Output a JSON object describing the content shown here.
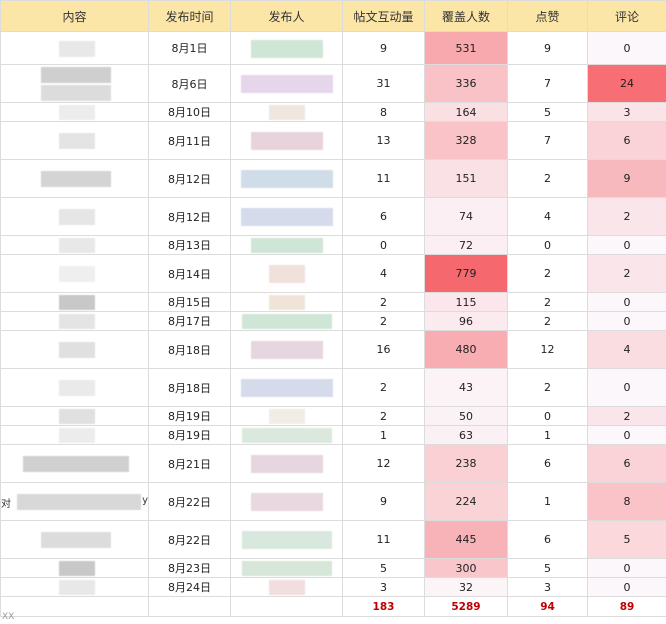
{
  "headers": [
    "内容",
    "发布时间",
    "发布人",
    "帖文互动量",
    "覆盖人数",
    "点赞",
    "评论"
  ],
  "rows": [
    {
      "date": "8月1日",
      "interactions": "9",
      "reach": "531",
      "likes": "9",
      "comments": "0",
      "reach_bg": "#f7a9ae",
      "comments_bg": "#fbf7fa"
    },
    {
      "date": "8月6日",
      "interactions": "31",
      "reach": "336",
      "likes": "7",
      "comments": "24",
      "reach_bg": "#f9c2c6",
      "comments_bg": "#f76f74"
    },
    {
      "date": "8月10日",
      "interactions": "8",
      "reach": "164",
      "likes": "5",
      "comments": "3",
      "reach_bg": "#fadfe3",
      "comments_bg": "#fbe4e8"
    },
    {
      "date": "8月11日",
      "interactions": "13",
      "reach": "328",
      "likes": "7",
      "comments": "6",
      "reach_bg": "#f9c3c7",
      "comments_bg": "#f9d3d7"
    },
    {
      "date": "8月12日",
      "interactions": "11",
      "reach": "151",
      "likes": "2",
      "comments": "9",
      "reach_bg": "#fae1e5",
      "comments_bg": "#f8b9be"
    },
    {
      "date": "8月12日",
      "interactions": "6",
      "reach": "74",
      "likes": "4",
      "comments": "2",
      "reach_bg": "#fbeff3",
      "comments_bg": "#fae6ea"
    },
    {
      "date": "8月13日",
      "interactions": "0",
      "reach": "72",
      "likes": "0",
      "comments": "0",
      "reach_bg": "#fbeff3",
      "comments_bg": "#fbf7fa"
    },
    {
      "date": "8月14日",
      "interactions": "4",
      "reach": "779",
      "likes": "2",
      "comments": "2",
      "reach_bg": "#f5686d",
      "comments_bg": "#fae6ea"
    },
    {
      "date": "8月15日",
      "interactions": "2",
      "reach": "115",
      "likes": "2",
      "comments": "0",
      "reach_bg": "#fbe7eb",
      "comments_bg": "#fbf7fa"
    },
    {
      "date": "8月17日",
      "interactions": "2",
      "reach": "96",
      "likes": "2",
      "comments": "0",
      "reach_bg": "#fbeaee",
      "comments_bg": "#fbf7fa"
    },
    {
      "date": "8月18日",
      "interactions": "16",
      "reach": "480",
      "likes": "12",
      "comments": "4",
      "reach_bg": "#f8adb2",
      "comments_bg": "#fadde1"
    },
    {
      "date": "8月18日",
      "interactions": "2",
      "reach": "43",
      "likes": "2",
      "comments": "0",
      "reach_bg": "#fbf3f6",
      "comments_bg": "#fbf7fa"
    },
    {
      "date": "8月19日",
      "interactions": "2",
      "reach": "50",
      "likes": "0",
      "comments": "2",
      "reach_bg": "#fbf2f5",
      "comments_bg": "#fae6ea"
    },
    {
      "date": "8月19日",
      "interactions": "1",
      "reach": "63",
      "likes": "1",
      "comments": "0",
      "reach_bg": "#fbf0f4",
      "comments_bg": "#fbf7fa"
    },
    {
      "date": "8月21日",
      "interactions": "12",
      "reach": "238",
      "likes": "6",
      "comments": "6",
      "reach_bg": "#fad0d4",
      "comments_bg": "#f9d3d7"
    },
    {
      "date": "8月22日",
      "interactions": "9",
      "reach": "224",
      "likes": "1",
      "comments": "8",
      "reach_bg": "#fad3d7",
      "comments_bg": "#f9c3c8"
    },
    {
      "date": "8月22日",
      "interactions": "11",
      "reach": "445",
      "likes": "6",
      "comments": "5",
      "reach_bg": "#f8b3b8",
      "comments_bg": "#fad8dc"
    },
    {
      "date": "8月23日",
      "interactions": "5",
      "reach": "300",
      "likes": "5",
      "comments": "0",
      "reach_bg": "#f9c7cb",
      "comments_bg": "#fbf7fa"
    },
    {
      "date": "8月24日",
      "interactions": "3",
      "reach": "32",
      "likes": "3",
      "comments": "0",
      "reach_bg": "#fbf5f8",
      "comments_bg": "#fbf7fa"
    }
  ],
  "totals": {
    "interactions": "183",
    "reach": "5289",
    "likes": "94",
    "comments": "89"
  },
  "row16_prefix": "对",
  "row16_suffix": "y",
  "corner_mark": "XX"
}
